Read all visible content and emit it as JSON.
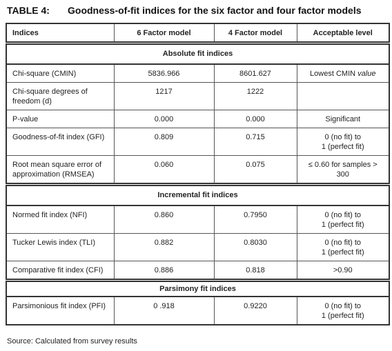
{
  "title": {
    "label": "TABLE 4:",
    "text": "Goodness-of-fit indices for the six factor and four factor models"
  },
  "table": {
    "header": [
      "Indices",
      "6 Factor model",
      "4 Factor model",
      "Acceptable level"
    ],
    "sections": [
      {
        "title": "Absolute fit indices",
        "rows": [
          [
            [
              "Chi-square (CMIN)"
            ],
            [
              "5836.966"
            ],
            [
              "8601.627"
            ],
            [
              {
                "text": "Lowest CMIN",
                "italic": "value"
              }
            ]
          ],
          [
            [
              "Chi-square degrees of",
              "freedom (d)"
            ],
            [
              "1217"
            ],
            [
              "1222"
            ],
            []
          ],
          [
            [
              "P-value"
            ],
            [
              "0.000"
            ],
            [
              "0.000"
            ],
            [
              "Significant"
            ]
          ],
          [
            [
              "Goodness-of-fit index (GFI)"
            ],
            [
              "0.809"
            ],
            [
              "0.715"
            ],
            [
              "0 (no fit) to",
              "1 (perfect fit)"
            ]
          ],
          [
            [
              "Root mean square error of",
              "approximation (RMSEA)"
            ],
            [
              "0.060"
            ],
            [
              "0.075"
            ],
            [
              "≤ 0.60 for samples >",
              "300"
            ]
          ]
        ]
      },
      {
        "title": "Incremental fit indices",
        "rows": [
          [
            [
              "Normed fit index (NFI)"
            ],
            [
              "0.860"
            ],
            [
              "0.7950"
            ],
            [
              "0  (no fit) to",
              "1 (perfect fit)"
            ]
          ],
          [
            [
              "Tucker Lewis index (TLI)"
            ],
            [
              "0.882"
            ],
            [
              "0.8030"
            ],
            [
              "0  (no fit) to",
              "1 (perfect fit)"
            ]
          ],
          [
            [
              "Comparative fit index (CFI)"
            ],
            [
              "0.886"
            ],
            [
              "0.818"
            ],
            [
              ">0.90"
            ]
          ]
        ]
      },
      {
        "title": "Parsimony fit indices",
        "rows": [
          [
            [
              "Parsimonious fit index (PFI)"
            ],
            [
              "0 .918"
            ],
            [
              "0.9220"
            ],
            [
              "0 (no fit) to",
              "1 (perfect fit)"
            ]
          ]
        ]
      }
    ]
  },
  "source": "Source: Calculated from survey results"
}
